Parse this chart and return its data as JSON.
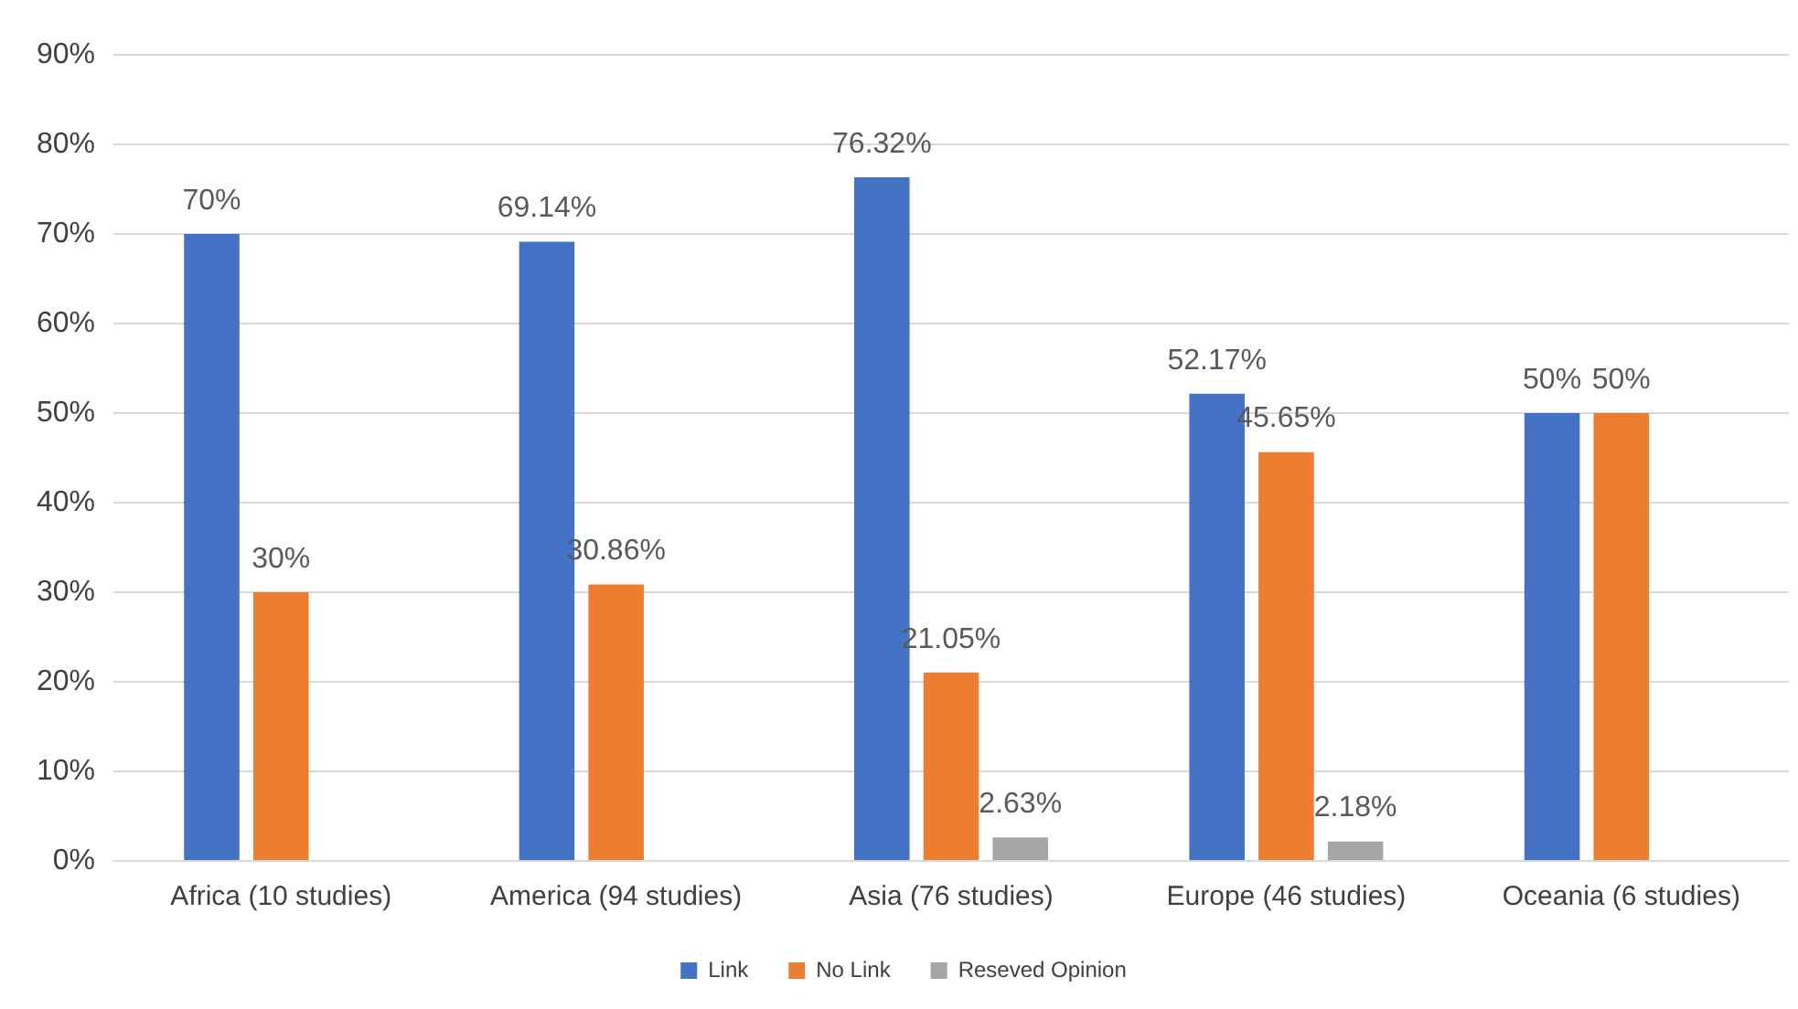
{
  "chart_data": {
    "type": "bar",
    "categories": [
      "Africa (10 studies)",
      "America (94 studies)",
      "Asia (76 studies)",
      "Europe (46 studies)",
      "Oceania (6 studies)"
    ],
    "series": [
      {
        "name": "Link",
        "color": "#4472c4",
        "values": [
          70,
          69.14,
          76.32,
          52.17,
          50
        ],
        "value_labels": [
          "70%",
          "69.14%",
          "76.32%",
          "52.17%",
          "50%"
        ]
      },
      {
        "name": "No Link",
        "color": "#ed7d31",
        "values": [
          30,
          30.86,
          21.05,
          45.65,
          50
        ],
        "value_labels": [
          "30%",
          "30.86%",
          "21.05%",
          "45.65%",
          "50%"
        ]
      },
      {
        "name": "Reseved Opinion",
        "color": "#a5a5a5",
        "values": [
          null,
          null,
          2.63,
          2.18,
          null
        ],
        "value_labels": [
          null,
          null,
          "2.63%",
          "2.18%",
          null
        ]
      }
    ],
    "ylim": [
      0,
      90
    ],
    "yticks": [
      {
        "value": 0,
        "label": "0%"
      },
      {
        "value": 10,
        "label": "10%"
      },
      {
        "value": 20,
        "label": "20%"
      },
      {
        "value": 30,
        "label": "30%"
      },
      {
        "value": 40,
        "label": "40%"
      },
      {
        "value": 50,
        "label": "50%"
      },
      {
        "value": 60,
        "label": "60%"
      },
      {
        "value": 70,
        "label": "70%"
      },
      {
        "value": 80,
        "label": "80%"
      },
      {
        "value": 90,
        "label": "90%"
      }
    ],
    "grid": "y",
    "legend": "bottom"
  }
}
